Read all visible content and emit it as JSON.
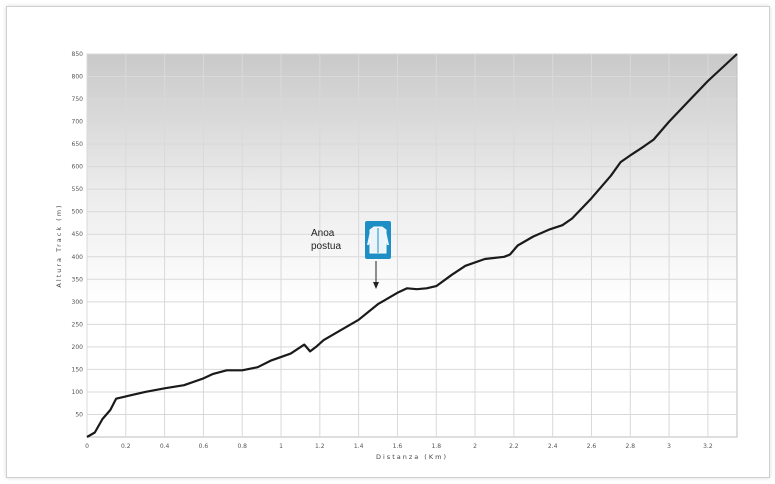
{
  "chart_data": {
    "type": "line",
    "title": "",
    "xlabel": "Distanza (Km)",
    "ylabel": "Altura Track (m)",
    "xlim": [
      0,
      3.35
    ],
    "ylim": [
      0,
      850
    ],
    "x_ticks": [
      0,
      0.2,
      0.4,
      0.6,
      0.8,
      1,
      1.2,
      1.4,
      1.6,
      1.8,
      2,
      2.2,
      2.4,
      2.6,
      2.8,
      3,
      3.2
    ],
    "x_tick_labels": [
      "0",
      "0.2",
      "0.4",
      "0.6",
      "0.8",
      "1",
      "1.2",
      "1.4",
      "1.6",
      "1.8",
      "2",
      "2.2",
      "2.4",
      "2.6",
      "2.8",
      "3",
      "3.2"
    ],
    "y_ticks": [
      50,
      100,
      150,
      200,
      250,
      300,
      350,
      400,
      450,
      500,
      550,
      600,
      650,
      700,
      750,
      800,
      850
    ],
    "y_tick_labels": [
      "50",
      "100",
      "150",
      "200",
      "250",
      "300",
      "350",
      "400",
      "450",
      "500",
      "550",
      "600",
      "650",
      "700",
      "750",
      "800",
      "850"
    ],
    "grid": true,
    "series": [
      {
        "x": [
          0,
          0.04,
          0.08,
          0.12,
          0.15,
          0.2,
          0.3,
          0.4,
          0.5,
          0.6,
          0.65,
          0.72,
          0.8,
          0.88,
          0.95,
          1.05,
          1.12,
          1.15,
          1.18,
          1.22,
          1.3,
          1.4,
          1.5,
          1.6,
          1.65,
          1.7,
          1.75,
          1.8,
          1.88,
          1.95,
          2.05,
          2.15,
          2.18,
          2.22,
          2.3,
          2.38,
          2.45,
          2.5,
          2.6,
          2.7,
          2.75,
          2.8,
          2.87,
          2.92,
          3.0,
          3.1,
          3.2,
          3.3,
          3.35
        ],
        "y": [
          0,
          10,
          40,
          60,
          85,
          90,
          100,
          108,
          115,
          130,
          140,
          148,
          148,
          155,
          170,
          185,
          205,
          190,
          200,
          215,
          235,
          260,
          295,
          320,
          330,
          328,
          330,
          335,
          360,
          380,
          395,
          400,
          405,
          425,
          445,
          460,
          470,
          485,
          530,
          580,
          610,
          625,
          645,
          660,
          700,
          745,
          790,
          830,
          850
        ]
      }
    ]
  },
  "annotation": {
    "label_line1": "Anoa",
    "label_line2": "postua",
    "icon": "jacket-icon",
    "icon_color": "#1e8fc4"
  },
  "colors": {
    "line": "#1a1a1a",
    "grid": "#d9d9d9"
  }
}
